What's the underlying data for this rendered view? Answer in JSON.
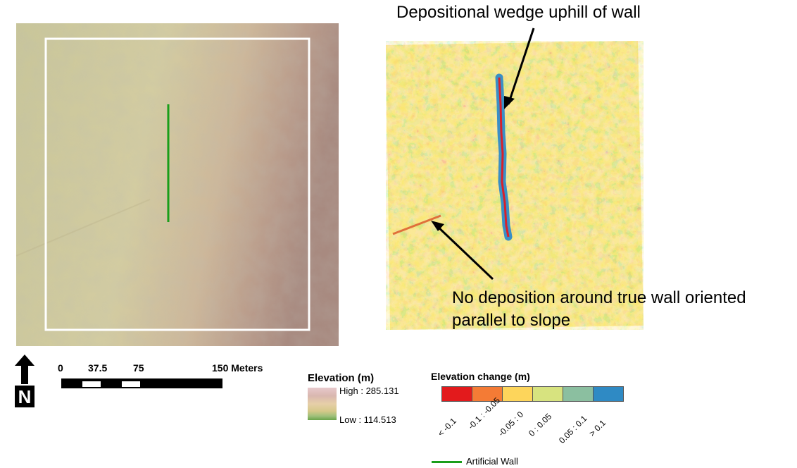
{
  "annotations": {
    "top": "Depositional wedge uphill of wall",
    "bottom_line1": "No deposition around true wall oriented",
    "bottom_line2": "parallel to slope"
  },
  "north_arrow": {
    "label": "N"
  },
  "scale_bar": {
    "ticks": [
      "0",
      "37.5",
      "75",
      "150 Meters"
    ]
  },
  "elevation_legend": {
    "title": "Elevation (m)",
    "high": "High : 285.131",
    "low": "Low : 114.513",
    "colors": {
      "high": "#e8c9cc",
      "low": "#6aa34a"
    }
  },
  "change_legend": {
    "title": "Elevation change (m)",
    "classes": [
      {
        "label": "< -0.1",
        "color": "#e31a1c"
      },
      {
        "label": "-0.1 : -0.05",
        "color": "#f47b35"
      },
      {
        "label": "-0.05 : 0",
        "color": "#fdd55b"
      },
      {
        "label": "0 : 0.05",
        "color": "#d7e37f"
      },
      {
        "label": "0.05 : 0.1",
        "color": "#8bbfa0"
      },
      {
        "label": "> 0.1",
        "color": "#2f8ac4"
      }
    ]
  },
  "wall_legend": {
    "label": "Artificial Wall",
    "color": "#1a9e1a"
  }
}
